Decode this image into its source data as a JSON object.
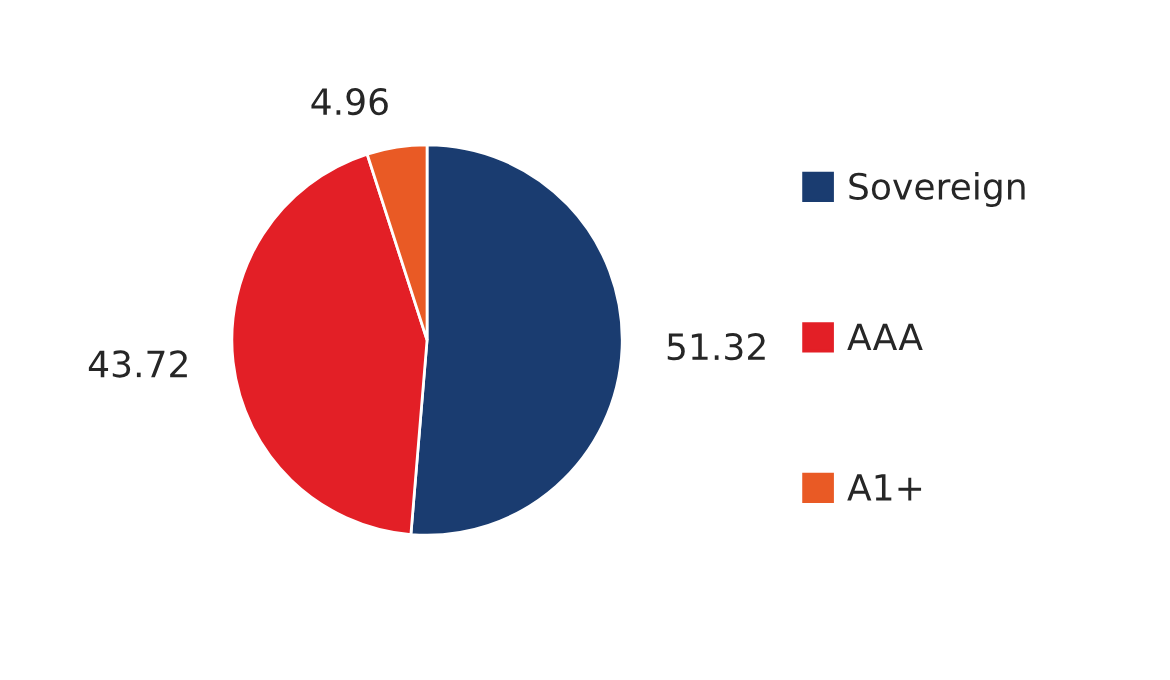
{
  "chart_data": {
    "type": "pie",
    "categories": [
      "Sovereign",
      "AAA",
      "A1+"
    ],
    "values": [
      51.32,
      43.72,
      4.96
    ],
    "colors": [
      "#1a3c70",
      "#e31f26",
      "#e95a25"
    ],
    "data_labels": true,
    "legend": "right"
  }
}
